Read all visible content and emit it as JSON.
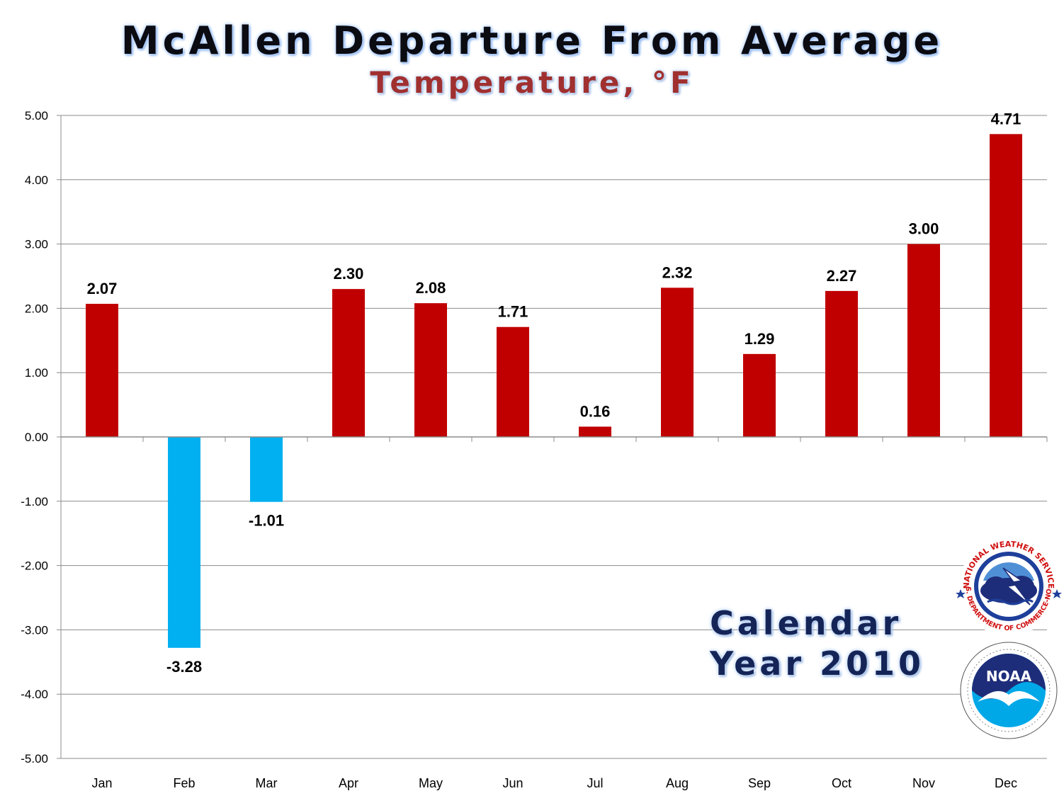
{
  "title": "McAllen Departure From Average",
  "subtitle": "Temperature, °F",
  "annotation": {
    "line1": "Calendar",
    "line2": "Year 2010"
  },
  "logos": {
    "nws": {
      "icon": "nws-logo",
      "text": "NATIONAL WEATHER SERVICE",
      "text2": "U.S. DEPARTMENT OF COMMERCE-NOAA"
    },
    "noaa": {
      "icon": "noaa-logo",
      "text": "NOAA"
    }
  },
  "colors": {
    "positive": "#c00000",
    "negative": "#00b0f0",
    "grid": "#8c8c8c",
    "axis_text": "#000000"
  },
  "chart_data": {
    "type": "bar",
    "categories": [
      "Jan",
      "Feb",
      "Mar",
      "Apr",
      "May",
      "Jun",
      "Jul",
      "Aug",
      "Sep",
      "Oct",
      "Nov",
      "Dec"
    ],
    "values": [
      2.07,
      -3.28,
      -1.01,
      2.3,
      2.08,
      1.71,
      0.16,
      2.32,
      1.29,
      2.27,
      3.0,
      4.71
    ],
    "data_labels": [
      "2.07",
      "-3.28",
      "-1.01",
      "2.30",
      "2.08",
      "1.71",
      "0.16",
      "2.32",
      "1.29",
      "2.27",
      "3.00",
      "4.71"
    ],
    "ylim": [
      -5,
      5
    ],
    "yticks": [
      5,
      4,
      3,
      2,
      1,
      0,
      -1,
      -2,
      -3,
      -4,
      -5
    ],
    "ytick_labels": [
      "5.00",
      "4.00",
      "3.00",
      "2.00",
      "1.00",
      "0.00",
      "-1.00",
      "-2.00",
      "-3.00",
      "-4.00",
      "-5.00"
    ],
    "grid": true,
    "legend": "none",
    "xlabel": "",
    "ylabel": ""
  }
}
